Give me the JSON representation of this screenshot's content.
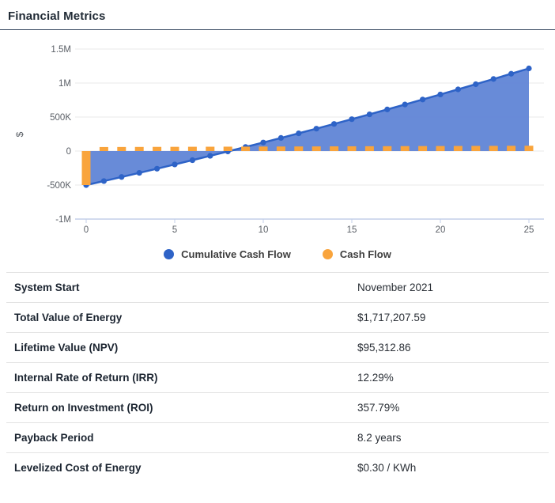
{
  "header": {
    "title": "Financial Metrics"
  },
  "chart_data": {
    "type": "combo",
    "title": "",
    "xlabel": "",
    "ylabel": "$",
    "xlim": [
      0,
      25
    ],
    "ylim": [
      -1000000,
      1500000
    ],
    "grid": true,
    "legend_position": "bottom",
    "x_ticks": [
      0,
      5,
      10,
      15,
      20,
      25
    ],
    "y_ticks": [
      1500000,
      1000000,
      500000,
      0,
      -500000,
      -1000000
    ],
    "y_tick_labels": [
      "1.5M",
      "1M",
      "500K",
      "0",
      "-500K",
      "-1M"
    ],
    "x": [
      0,
      1,
      2,
      3,
      4,
      5,
      6,
      7,
      8,
      9,
      10,
      11,
      12,
      13,
      14,
      15,
      16,
      17,
      18,
      19,
      20,
      21,
      22,
      23,
      24,
      25
    ],
    "series": [
      {
        "name": "Cumulative Cash Flow",
        "type": "area-line",
        "color": "#2e63c7",
        "fill": "#5b81d5",
        "values": [
          -500000,
          -441000,
          -381200,
          -320600,
          -259200,
          -197000,
          -134000,
          -70200,
          -5600,
          59800,
          126000,
          193000,
          260800,
          329400,
          398800,
          469000,
          540000,
          611800,
          684400,
          757800,
          832000,
          907000,
          982800,
          1059400,
          1136800,
          1215000
        ]
      },
      {
        "name": "Cash Flow",
        "type": "bar",
        "color": "#f9a43c",
        "values": [
          -500000,
          59000,
          59800,
          60600,
          61400,
          62200,
          63000,
          63800,
          64600,
          65400,
          66200,
          67000,
          67800,
          68600,
          69400,
          70200,
          71000,
          71800,
          72600,
          73400,
          74200,
          75000,
          75800,
          76600,
          77400,
          78200
        ]
      }
    ],
    "style": {
      "gridline_color": "#e8e8e8",
      "axis_color": "#c3cfe8",
      "tick_text_color": "#5a5f66"
    }
  },
  "legend": [
    {
      "label": "Cumulative Cash Flow",
      "color": "#2e63c7"
    },
    {
      "label": "Cash Flow",
      "color": "#f9a43c"
    }
  ],
  "table": {
    "rows": [
      {
        "label": "System Start",
        "value": "November 2021"
      },
      {
        "label": "Total Value of Energy",
        "value": "$1,717,207.59"
      },
      {
        "label": "Lifetime Value (NPV)",
        "value": "$95,312.86"
      },
      {
        "label": "Internal Rate of Return (IRR)",
        "value": "12.29%"
      },
      {
        "label": "Return on Investment (ROI)",
        "value": "357.79%"
      },
      {
        "label": "Payback Period",
        "value": "8.2 years"
      },
      {
        "label": "Levelized Cost of Energy",
        "value": "$0.30 / KWh"
      }
    ]
  }
}
